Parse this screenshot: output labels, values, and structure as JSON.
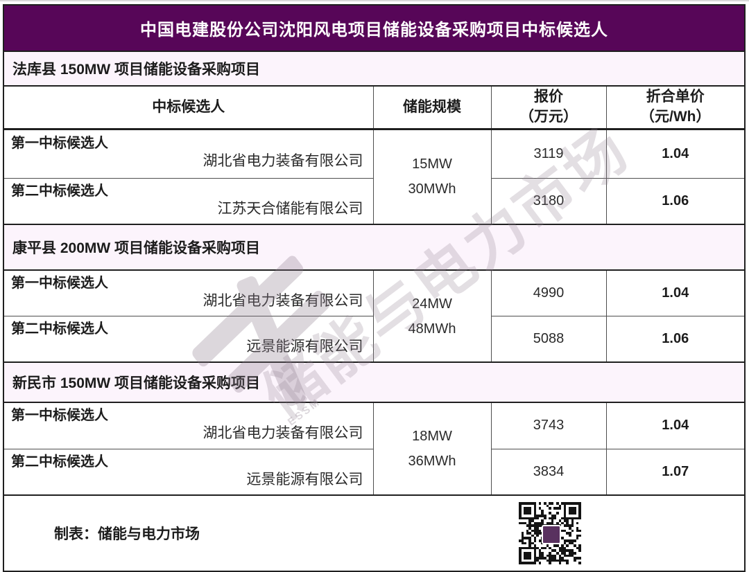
{
  "title": "中国电建股份公司沈阳风电项目储能设备采购项目中标候选人",
  "columns": {
    "candidate": "中标候选人",
    "scale": "储能规模",
    "price_l1": "报价",
    "price_l2": "（万元）",
    "unit_l1": "折合单价",
    "unit_l2": "（元/Wh）"
  },
  "sections": [
    {
      "header": "法库县 150MW 项目储能设备采购项目",
      "scale_l1": "15MW",
      "scale_l2": "30MWh",
      "rows": [
        {
          "rank": "第一中标候选人",
          "company": "湖北省电力装备有限公司",
          "price": "3119",
          "unit_price": "1.04"
        },
        {
          "rank": "第二中标候选人",
          "company": "江苏天合储能有限公司",
          "price": "3180",
          "unit_price": "1.06"
        }
      ]
    },
    {
      "header": "康平县 200MW 项目储能设备采购项目",
      "scale_l1": "24MW",
      "scale_l2": "48MWh",
      "rows": [
        {
          "rank": "第一中标候选人",
          "company": "湖北省电力装备有限公司",
          "price": "4990",
          "unit_price": "1.04"
        },
        {
          "rank": "第二中标候选人",
          "company": "远景能源有限公司",
          "price": "5088",
          "unit_price": "1.06"
        }
      ]
    },
    {
      "header": "新民市 150MW 项目储能设备采购项目",
      "scale_l1": "18MW",
      "scale_l2": "36MWh",
      "rows": [
        {
          "rank": "第一中标候选人",
          "company": "湖北省电力装备有限公司",
          "price": "3743",
          "unit_price": "1.04"
        },
        {
          "rank": "第二中标候选人",
          "company": "远景能源有限公司",
          "price": "3834",
          "unit_price": "1.07"
        }
      ]
    }
  ],
  "footer": {
    "label": "制表：储能与电力市场"
  },
  "watermark": {
    "text": "储能与电力市场",
    "subtext": "ESSM"
  },
  "icons": {
    "qr": "qr-code"
  },
  "colors": {
    "title_bg": "#570658",
    "section_bg": "#fcf4fc",
    "border_thick": "#1f1f1f",
    "border_thin": "#4d4d4d"
  }
}
